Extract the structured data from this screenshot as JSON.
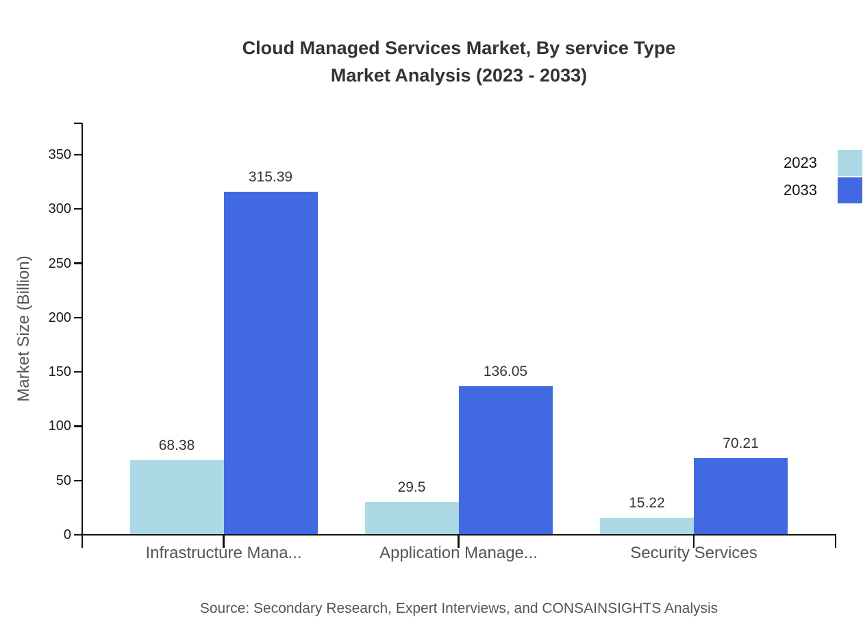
{
  "title": {
    "line1": "Cloud Managed Services Market, By service Type",
    "line2": "Market Analysis (2023 - 2033)"
  },
  "source": {
    "text": "Source: Secondary Research, Expert Interviews, and CONSAINSIGHTS Analysis"
  },
  "chart_data": {
    "type": "bar",
    "title": "Cloud Managed Services Market, By service Type Market Analysis (2023 - 2033)",
    "categories": [
      "Infrastructure Mana...",
      "Application Manage...",
      "Security Services"
    ],
    "series": [
      {
        "name": "2023",
        "color": "#ADD8E6",
        "values": [
          68.38,
          29.5,
          15.22
        ],
        "value_labels": [
          "68.38",
          "29.5",
          "15.22"
        ]
      },
      {
        "name": "2033",
        "color": "#4169E1",
        "values": [
          315.39,
          136.05,
          70.21
        ],
        "value_labels": [
          "315.39",
          "136.05",
          "70.21"
        ]
      }
    ],
    "ylabel": "Market Size (Billion)",
    "xlabel": "",
    "yticks": [
      0,
      50,
      100,
      150,
      200,
      250,
      300,
      350
    ],
    "ylim": [
      0,
      379
    ],
    "grid": false,
    "legend_position": "top-right",
    "bar_value_labels_shown": true,
    "colors": {
      "axis": "#111111",
      "tick_label": "#1a1a1a",
      "category_label": "#555555",
      "value_label": "#333333",
      "title": "#333333",
      "source": "#555555"
    }
  }
}
